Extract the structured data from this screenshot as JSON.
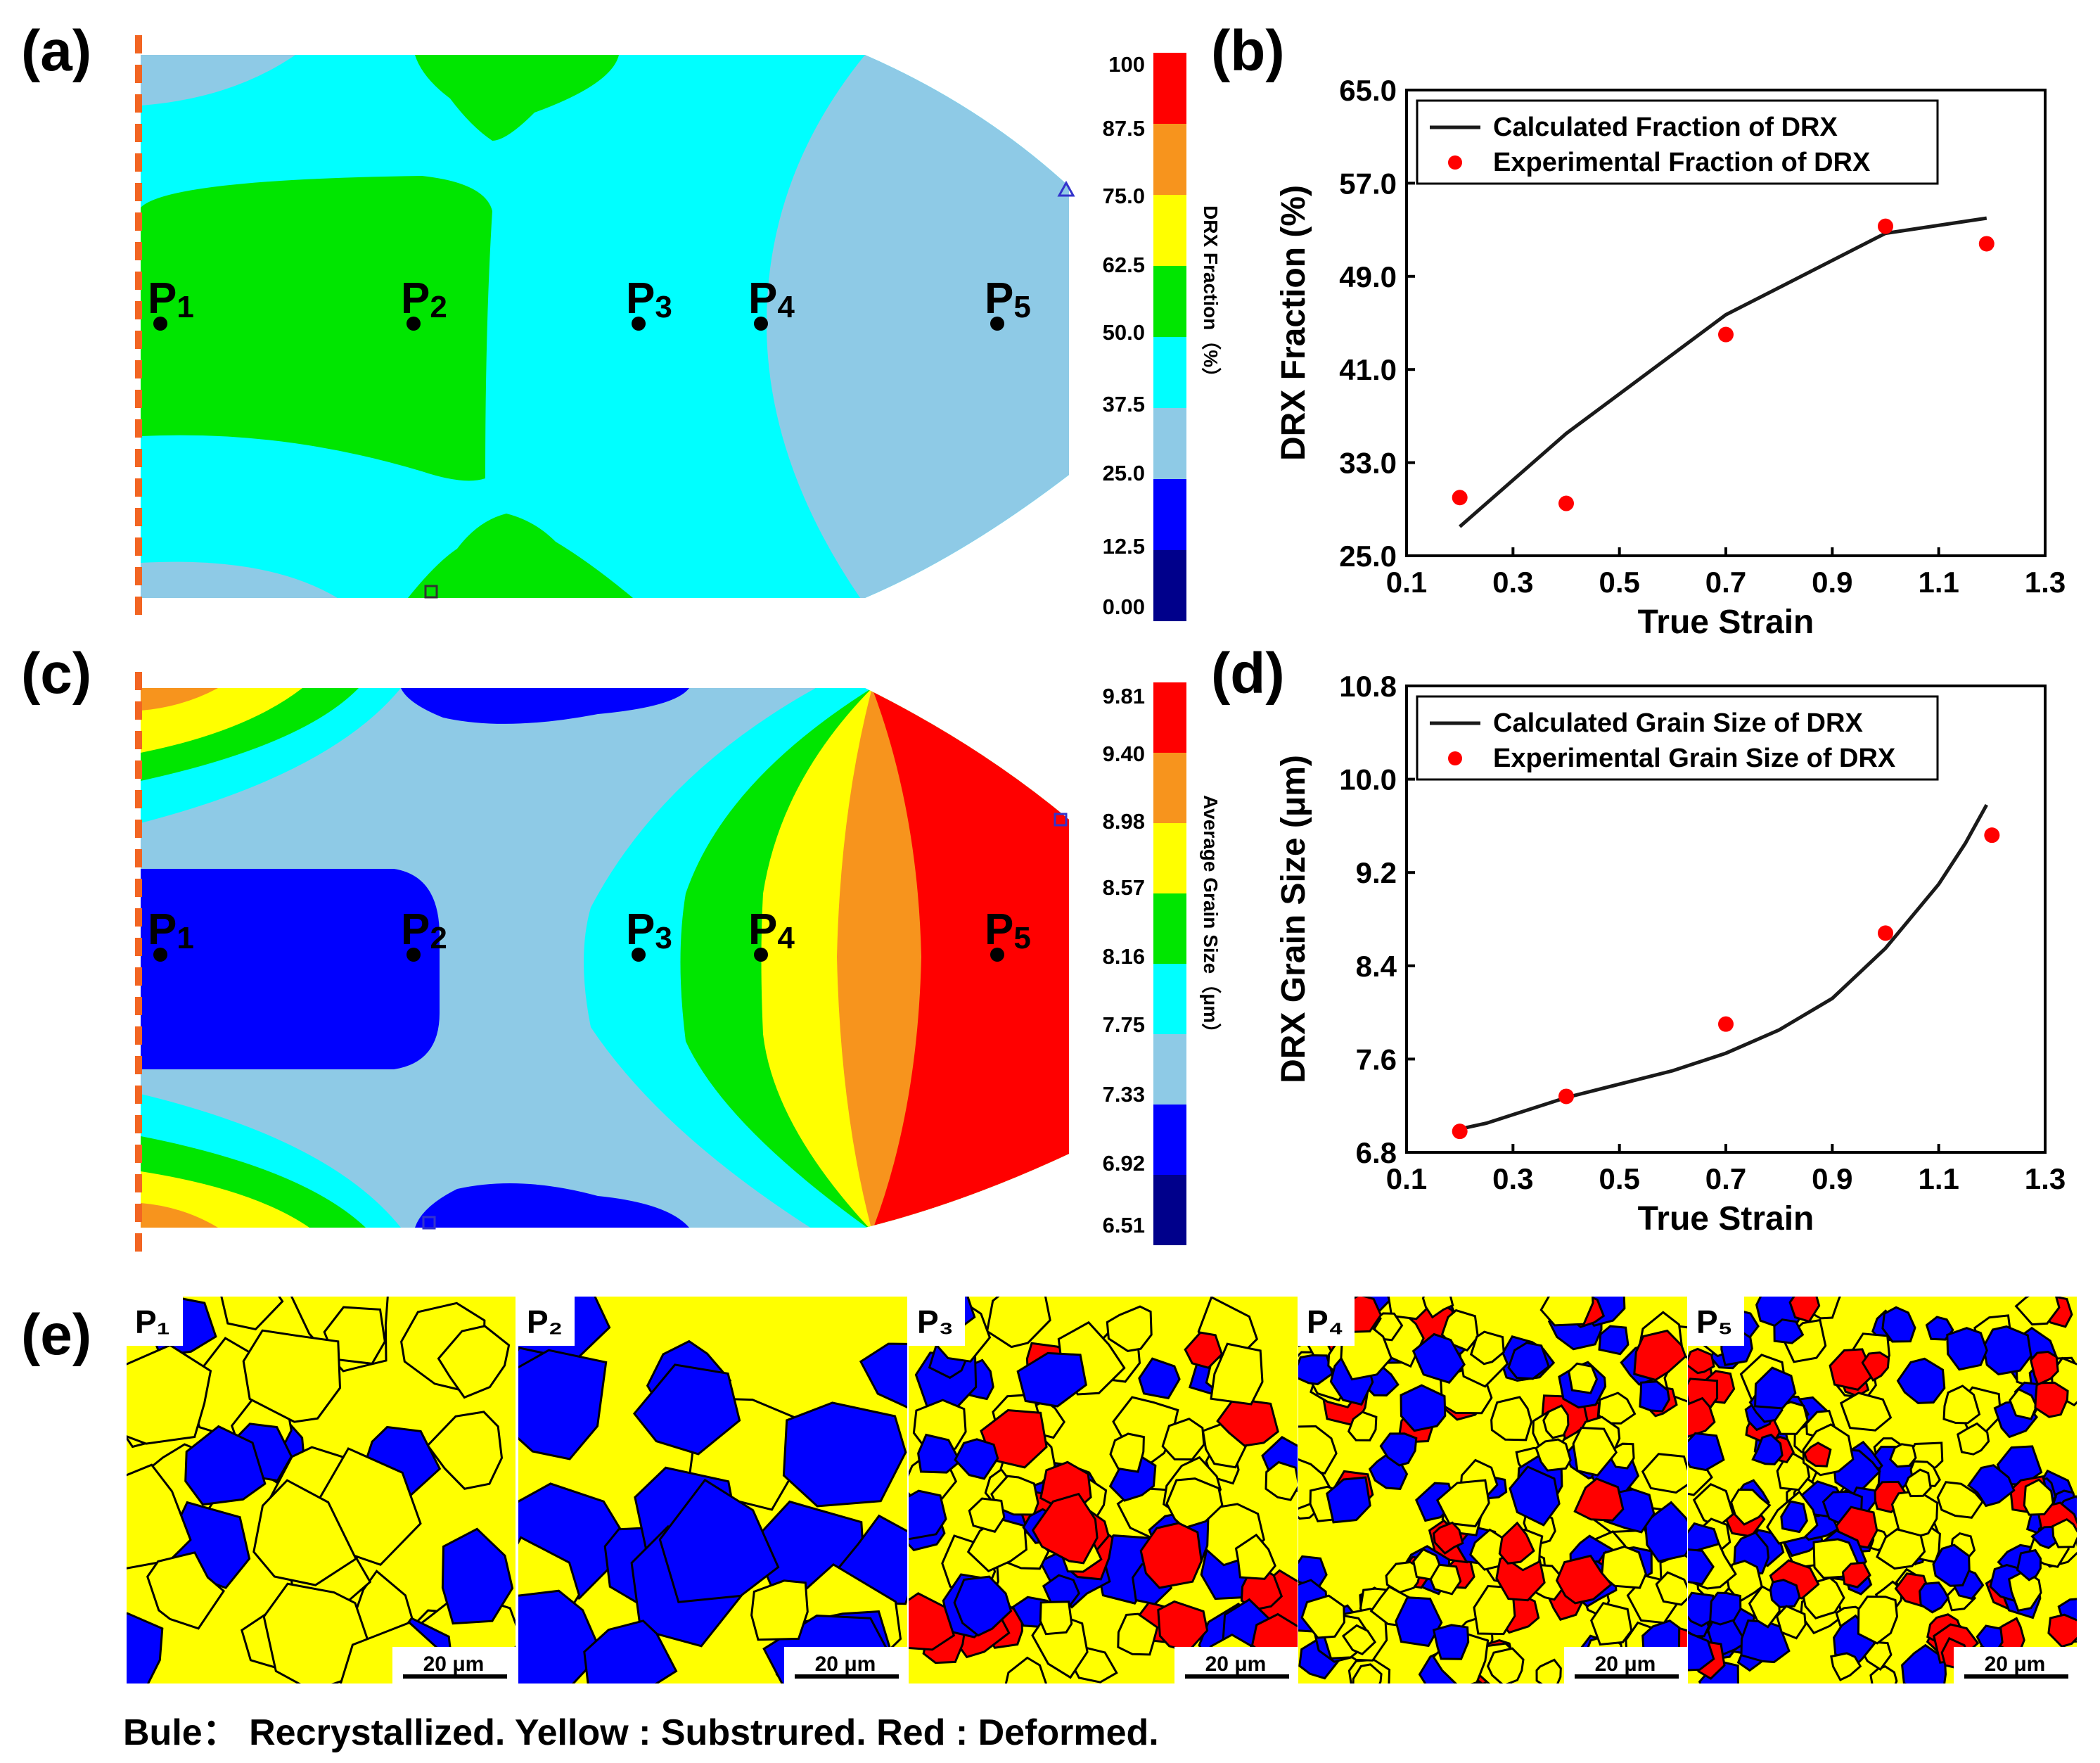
{
  "figure": {
    "panel_labels": [
      "(a)",
      "(b)",
      "(c)",
      "(d)",
      "(e)"
    ],
    "points": [
      "P1",
      "P2",
      "P3",
      "P4",
      "P5"
    ],
    "caption": "Bule： Recrystallized. Yellow : Substrured. Red : Deformed.",
    "colors": {
      "red": "#ff0000",
      "orange": "#f7941d",
      "yellow": "#ffff00",
      "green": "#00e600",
      "cyan": "#00ffff",
      "lightblue": "#8ecae6",
      "blue": "#0000ff",
      "navy": "#00008b",
      "black": "#000000",
      "curve": "#1a1a1a",
      "marker": "#ff0000",
      "symmetry": "#f26522"
    }
  },
  "contours": {
    "a": {
      "colorbar_title": "DRX Fraction（%）",
      "colorbar_ticks": [
        "100",
        "87.5",
        "75.0",
        "62.5",
        "50.0",
        "37.5",
        "25.0",
        "12.5",
        "0.00"
      ]
    },
    "c": {
      "colorbar_title": "Average Grain Size（μm）",
      "colorbar_ticks": [
        "9.81",
        "9.40",
        "8.98",
        "8.57",
        "8.16",
        "7.75",
        "7.33",
        "6.92",
        "6.51"
      ]
    }
  },
  "micrographs": {
    "scale_bar": "20 μm",
    "labels": [
      "P₁",
      "P₂",
      "P₃",
      "P₄",
      "P₅"
    ]
  },
  "chart_data": [
    {
      "panel": "b",
      "type": "line",
      "xlabel": "True Strain",
      "ylabel": "DRX Fraction (%)",
      "xlim": [
        0.1,
        1.3
      ],
      "ylim": [
        25.0,
        65.0
      ],
      "xticks": [
        "0.1",
        "0.3",
        "0.5",
        "0.7",
        "0.9",
        "1.1",
        "1.3"
      ],
      "yticks": [
        "25.0",
        "33.0",
        "41.0",
        "49.0",
        "57.0",
        "65.0"
      ],
      "legend": [
        "Calculated Fraction of DRX",
        "Experimental Fraction of DRX"
      ],
      "series": [
        {
          "name": "Calculated Fraction of DRX",
          "style": "line",
          "x": [
            0.2,
            0.4,
            0.7,
            1.0,
            1.19
          ],
          "y": [
            27.5,
            35.5,
            45.7,
            52.7,
            54.0
          ]
        },
        {
          "name": "Experimental Fraction of DRX",
          "style": "scatter",
          "x": [
            0.2,
            0.4,
            0.7,
            1.0,
            1.19
          ],
          "y": [
            30.0,
            29.5,
            44.0,
            53.3,
            51.8
          ]
        }
      ]
    },
    {
      "panel": "d",
      "type": "line",
      "xlabel": "True Strain",
      "ylabel": "DRX Grain Size (μm)",
      "xlim": [
        0.1,
        1.3
      ],
      "ylim": [
        6.8,
        10.8
      ],
      "xticks": [
        "0.1",
        "0.3",
        "0.5",
        "0.7",
        "0.9",
        "1.1",
        "1.3"
      ],
      "yticks": [
        "6.8",
        "7.6",
        "8.4",
        "9.2",
        "10.0",
        "10.8"
      ],
      "legend": [
        "Calculated Grain Size of DRX",
        "Experimental Grain Size of DRX"
      ],
      "series": [
        {
          "name": "Calculated Grain Size of DRX",
          "style": "line",
          "x": [
            0.2,
            0.25,
            0.4,
            0.6,
            0.7,
            0.8,
            0.9,
            1.0,
            1.1,
            1.15,
            1.19
          ],
          "y": [
            7.0,
            7.05,
            7.27,
            7.5,
            7.65,
            7.85,
            8.12,
            8.55,
            9.1,
            9.45,
            9.78
          ]
        },
        {
          "name": "Experimental Grain Size of DRX",
          "style": "scatter",
          "x": [
            0.2,
            0.4,
            0.7,
            1.0,
            1.2
          ],
          "y": [
            6.98,
            7.28,
            7.9,
            8.68,
            9.52
          ]
        }
      ]
    }
  ]
}
